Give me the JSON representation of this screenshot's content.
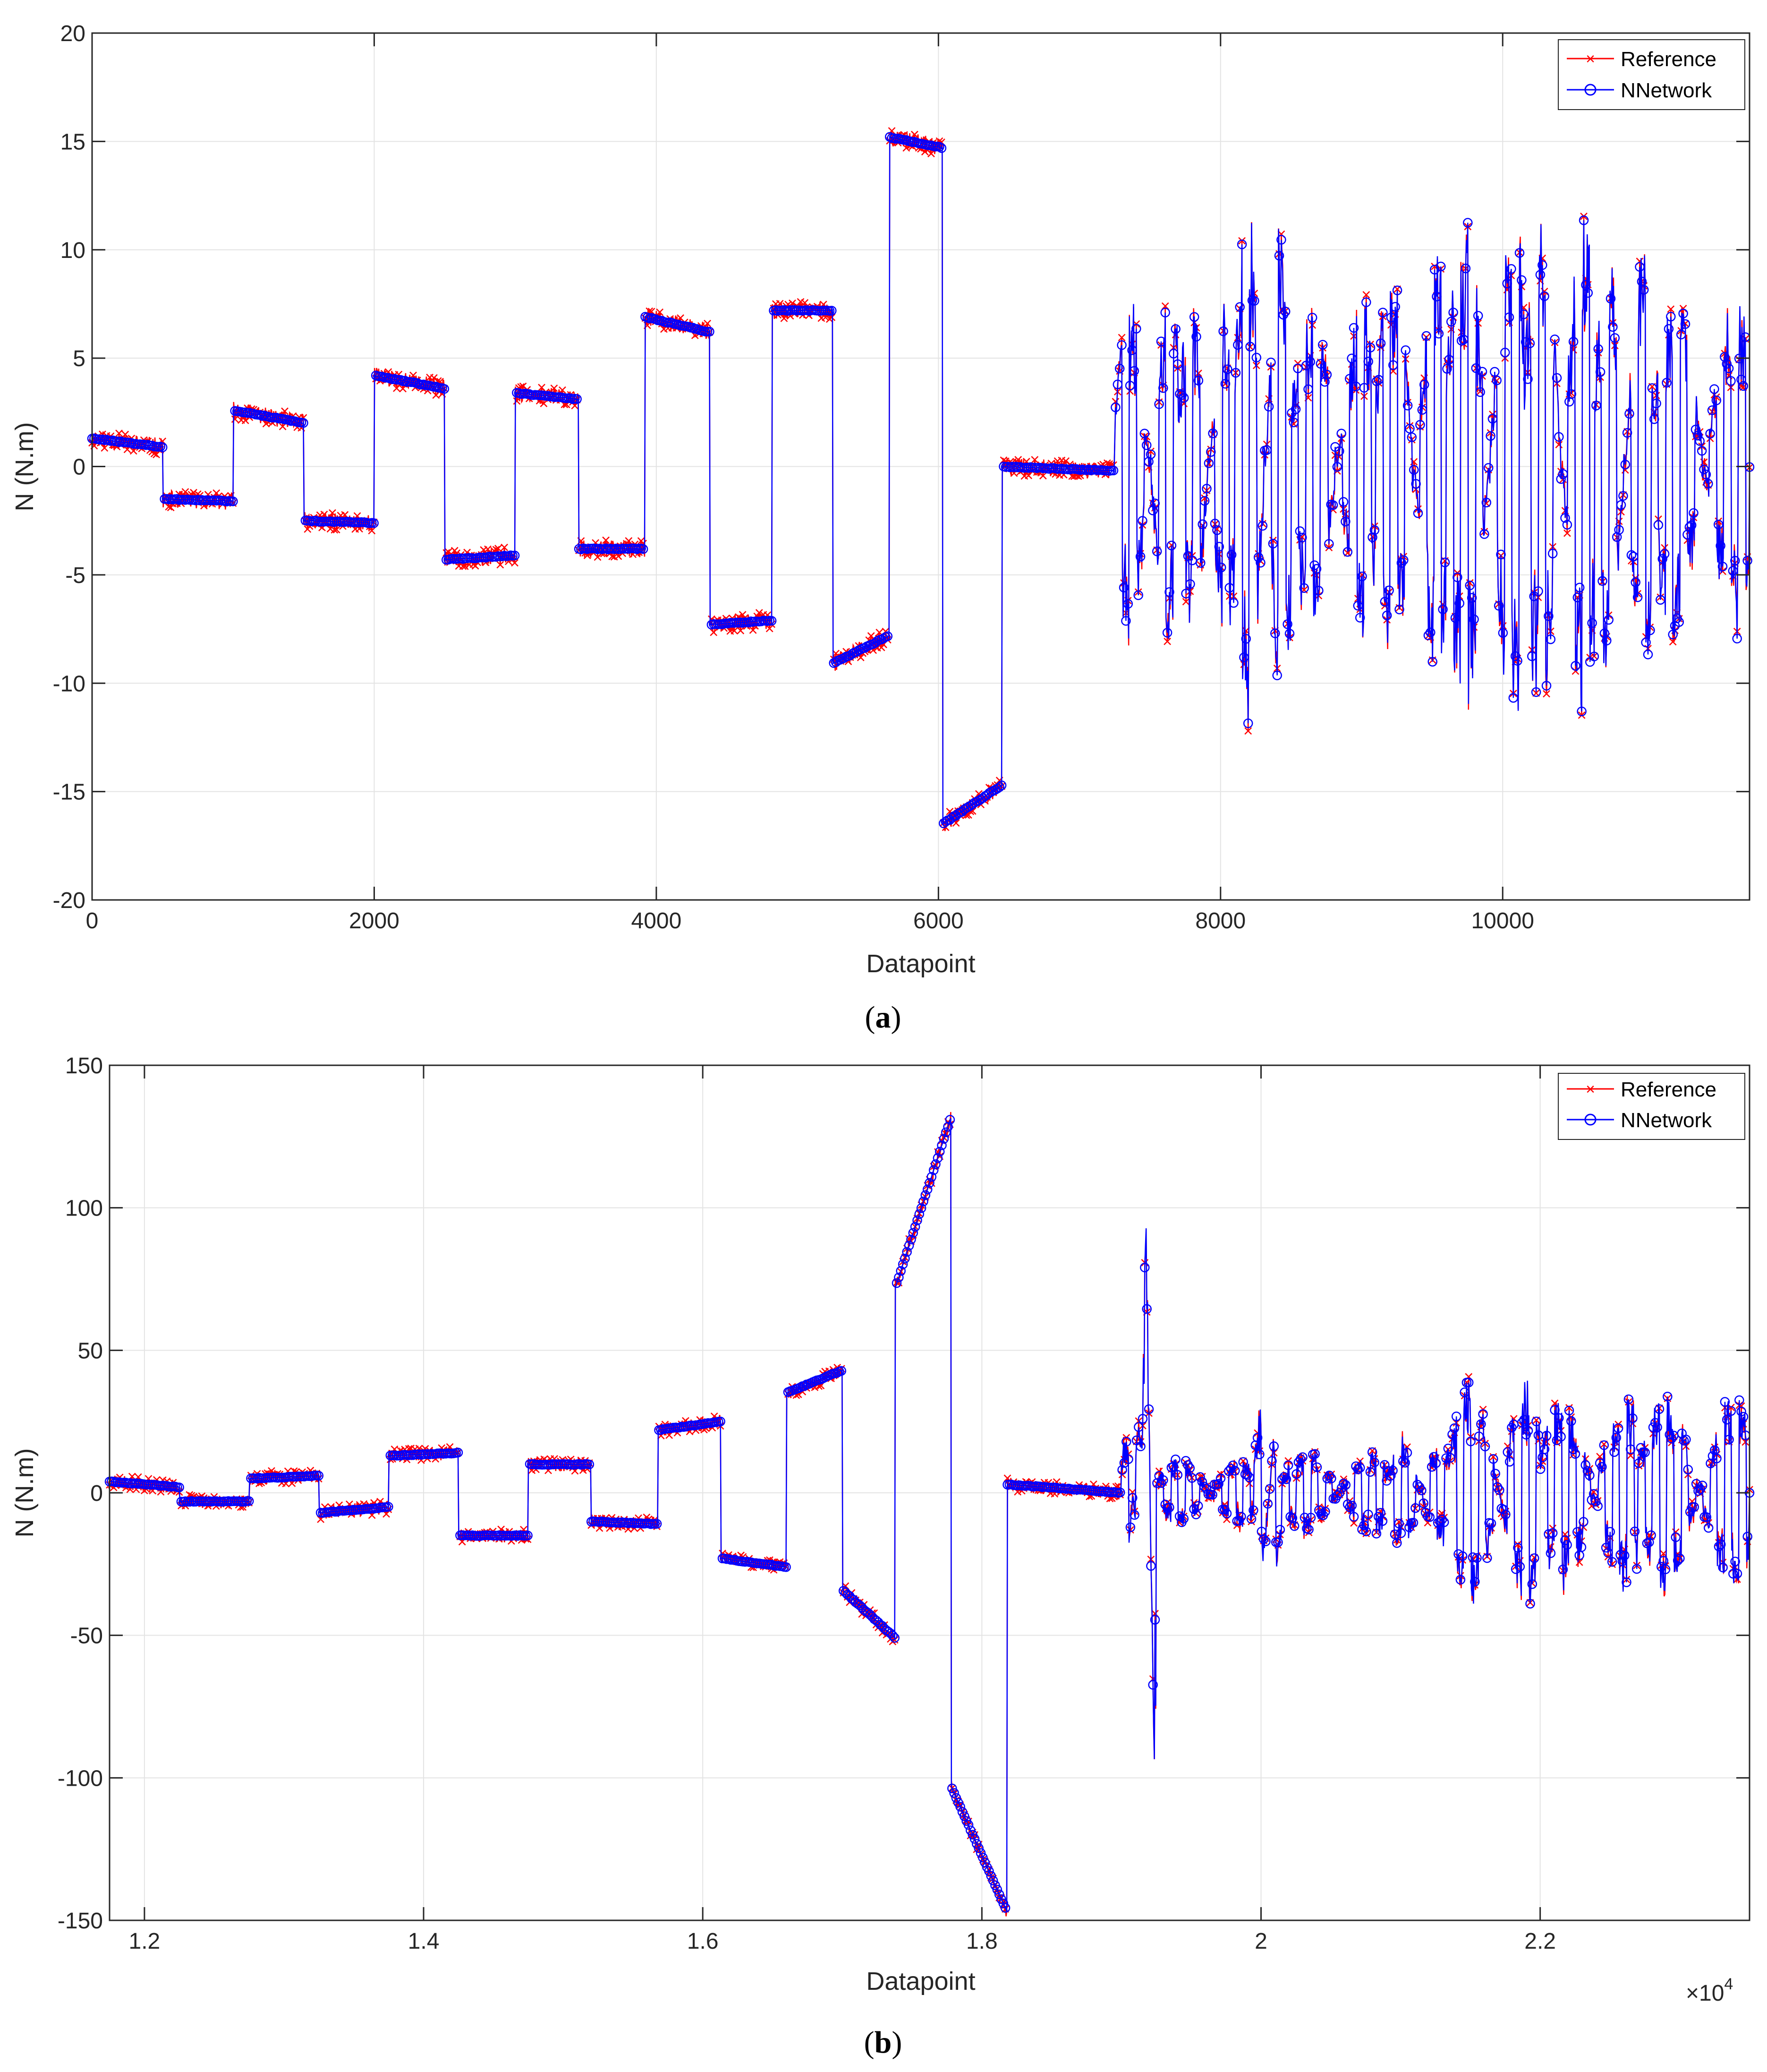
{
  "chart_data": [
    {
      "type": "line",
      "id": "a",
      "caption_letter": "a",
      "caption_open": "(",
      "caption_close": ")",
      "xlabel": "Datapoint",
      "ylabel": "N (N.m)",
      "xlim": [
        0,
        11750
      ],
      "ylim": [
        -20,
        20
      ],
      "xticks": [
        0,
        2000,
        4000,
        6000,
        8000,
        10000
      ],
      "xtick_labels": [
        "0",
        "2000",
        "4000",
        "6000",
        "8000",
        "10000"
      ],
      "yticks": [
        -20,
        -15,
        -10,
        -5,
        0,
        5,
        10,
        15,
        20
      ],
      "ytick_labels": [
        "-20",
        "-15",
        "-10",
        "-5",
        "0",
        "5",
        "10",
        "15",
        "20"
      ],
      "exponent_label": "",
      "grid": true,
      "legend_position": "top-right",
      "series": [
        {
          "name": "Reference",
          "color": "#ff0000",
          "marker": "x"
        },
        {
          "name": "NNetwork",
          "color": "#0000ff",
          "marker": "o"
        }
      ],
      "steps": [
        {
          "x0": 0,
          "x1": 500,
          "y0": 1.3,
          "y1": 0.9
        },
        {
          "x0": 500,
          "x1": 1000,
          "y0": -1.5,
          "y1": -1.6
        },
        {
          "x0": 1000,
          "x1": 1500,
          "y0": 2.6,
          "y1": 2.0
        },
        {
          "x0": 1500,
          "x1": 2000,
          "y0": -2.5,
          "y1": -2.6
        },
        {
          "x0": 2000,
          "x1": 2500,
          "y0": 4.2,
          "y1": 3.6
        },
        {
          "x0": 2500,
          "x1": 3000,
          "y0": -4.3,
          "y1": -4.1
        },
        {
          "x0": 3000,
          "x1": 3450,
          "y0": 3.4,
          "y1": 3.1
        },
        {
          "x0": 3450,
          "x1": 3920,
          "y0": -3.8,
          "y1": -3.8
        },
        {
          "x0": 3920,
          "x1": 4380,
          "y0": 6.9,
          "y1": 6.2
        },
        {
          "x0": 4380,
          "x1": 4820,
          "y0": -7.3,
          "y1": -7.1
        },
        {
          "x0": 4820,
          "x1": 5250,
          "y0": 7.2,
          "y1": 7.2
        },
        {
          "x0": 5250,
          "x1": 5650,
          "y0": -9.1,
          "y1": -7.8
        },
        {
          "x0": 5650,
          "x1": 6030,
          "y0": 15.2,
          "y1": 14.7
        },
        {
          "x0": 6030,
          "x1": 6450,
          "y0": -16.5,
          "y1": -14.7
        },
        {
          "x0": 6450,
          "x1": 7250,
          "y0": 0,
          "y1": -0.2
        }
      ],
      "noise": 0.25,
      "oscillation": [
        {
          "x0": 7250,
          "x1": 7700,
          "amp": 8
        },
        {
          "x0": 7700,
          "x1": 8100,
          "amp": 8
        },
        {
          "x0": 8100,
          "x1": 8500,
          "amp": 12
        },
        {
          "x0": 8500,
          "x1": 9100,
          "amp": 8
        },
        {
          "x0": 9100,
          "x1": 9600,
          "amp": 10
        },
        {
          "x0": 9600,
          "x1": 10150,
          "amp": 12
        },
        {
          "x0": 10150,
          "x1": 10650,
          "amp": 12
        },
        {
          "x0": 10650,
          "x1": 11050,
          "amp": 10
        },
        {
          "x0": 11050,
          "x1": 11750,
          "amp": 8
        }
      ]
    },
    {
      "type": "line",
      "id": "b",
      "caption_letter": "b",
      "caption_open": "(",
      "caption_close": ")",
      "xlabel": "Datapoint",
      "ylabel": "N (N.m)",
      "xlim": [
        11750,
        23500
      ],
      "ylim": [
        -150,
        150
      ],
      "xticks": [
        12000,
        14000,
        16000,
        18000,
        20000,
        22000
      ],
      "xtick_labels": [
        "1.2",
        "1.4",
        "1.6",
        "1.8",
        "2",
        "2.2"
      ],
      "yticks": [
        -150,
        -100,
        -50,
        0,
        50,
        100,
        150
      ],
      "ytick_labels": [
        "-150",
        "-100",
        "-50",
        "0",
        "50",
        "100",
        "150"
      ],
      "exponent_label": "×10",
      "exponent_power": "4",
      "grid": true,
      "legend_position": "top-right",
      "series": [
        {
          "name": "Reference",
          "color": "#ff0000",
          "marker": "x"
        },
        {
          "name": "NNetwork",
          "color": "#0000ff",
          "marker": "o"
        }
      ],
      "steps": [
        {
          "x0": 11750,
          "x1": 12250,
          "y0": 4,
          "y1": 2
        },
        {
          "x0": 12250,
          "x1": 12750,
          "y0": -3,
          "y1": -3
        },
        {
          "x0": 12750,
          "x1": 13250,
          "y0": 5,
          "y1": 6
        },
        {
          "x0": 13250,
          "x1": 13750,
          "y0": -7,
          "y1": -5
        },
        {
          "x0": 13750,
          "x1": 14250,
          "y0": 13,
          "y1": 14
        },
        {
          "x0": 14250,
          "x1": 14750,
          "y0": -15,
          "y1": -15
        },
        {
          "x0": 14750,
          "x1": 15200,
          "y0": 10,
          "y1": 10
        },
        {
          "x0": 15200,
          "x1": 15680,
          "y0": -10,
          "y1": -11
        },
        {
          "x0": 15680,
          "x1": 16130,
          "y0": 22,
          "y1": 25
        },
        {
          "x0": 16130,
          "x1": 16600,
          "y0": -23,
          "y1": -26
        },
        {
          "x0": 16600,
          "x1": 17000,
          "y0": 35,
          "y1": 43
        },
        {
          "x0": 17000,
          "x1": 17380,
          "y0": -34,
          "y1": -51
        },
        {
          "x0": 17380,
          "x1": 17780,
          "y0": 72,
          "y1": 132
        },
        {
          "x0": 17780,
          "x1": 18180,
          "y0": -103,
          "y1": -147
        },
        {
          "x0": 18180,
          "x1": 19000,
          "y0": 3,
          "y1": 0
        }
      ],
      "noise": 1.5,
      "oscillation": [
        {
          "x0": 19000,
          "x1": 19150,
          "amp": 25
        },
        {
          "x0": 19150,
          "x1": 19250,
          "amp": 95
        },
        {
          "x0": 19250,
          "x1": 19950,
          "amp": 12
        },
        {
          "x0": 19950,
          "x1": 20150,
          "amp": 30
        },
        {
          "x0": 20150,
          "x1": 20900,
          "amp": 15
        },
        {
          "x0": 20900,
          "x1": 21350,
          "amp": 20
        },
        {
          "x0": 21350,
          "x1": 22000,
          "amp": 40
        },
        {
          "x0": 22000,
          "x1": 22700,
          "amp": 35
        },
        {
          "x0": 22700,
          "x1": 23500,
          "amp": 35
        }
      ]
    }
  ]
}
